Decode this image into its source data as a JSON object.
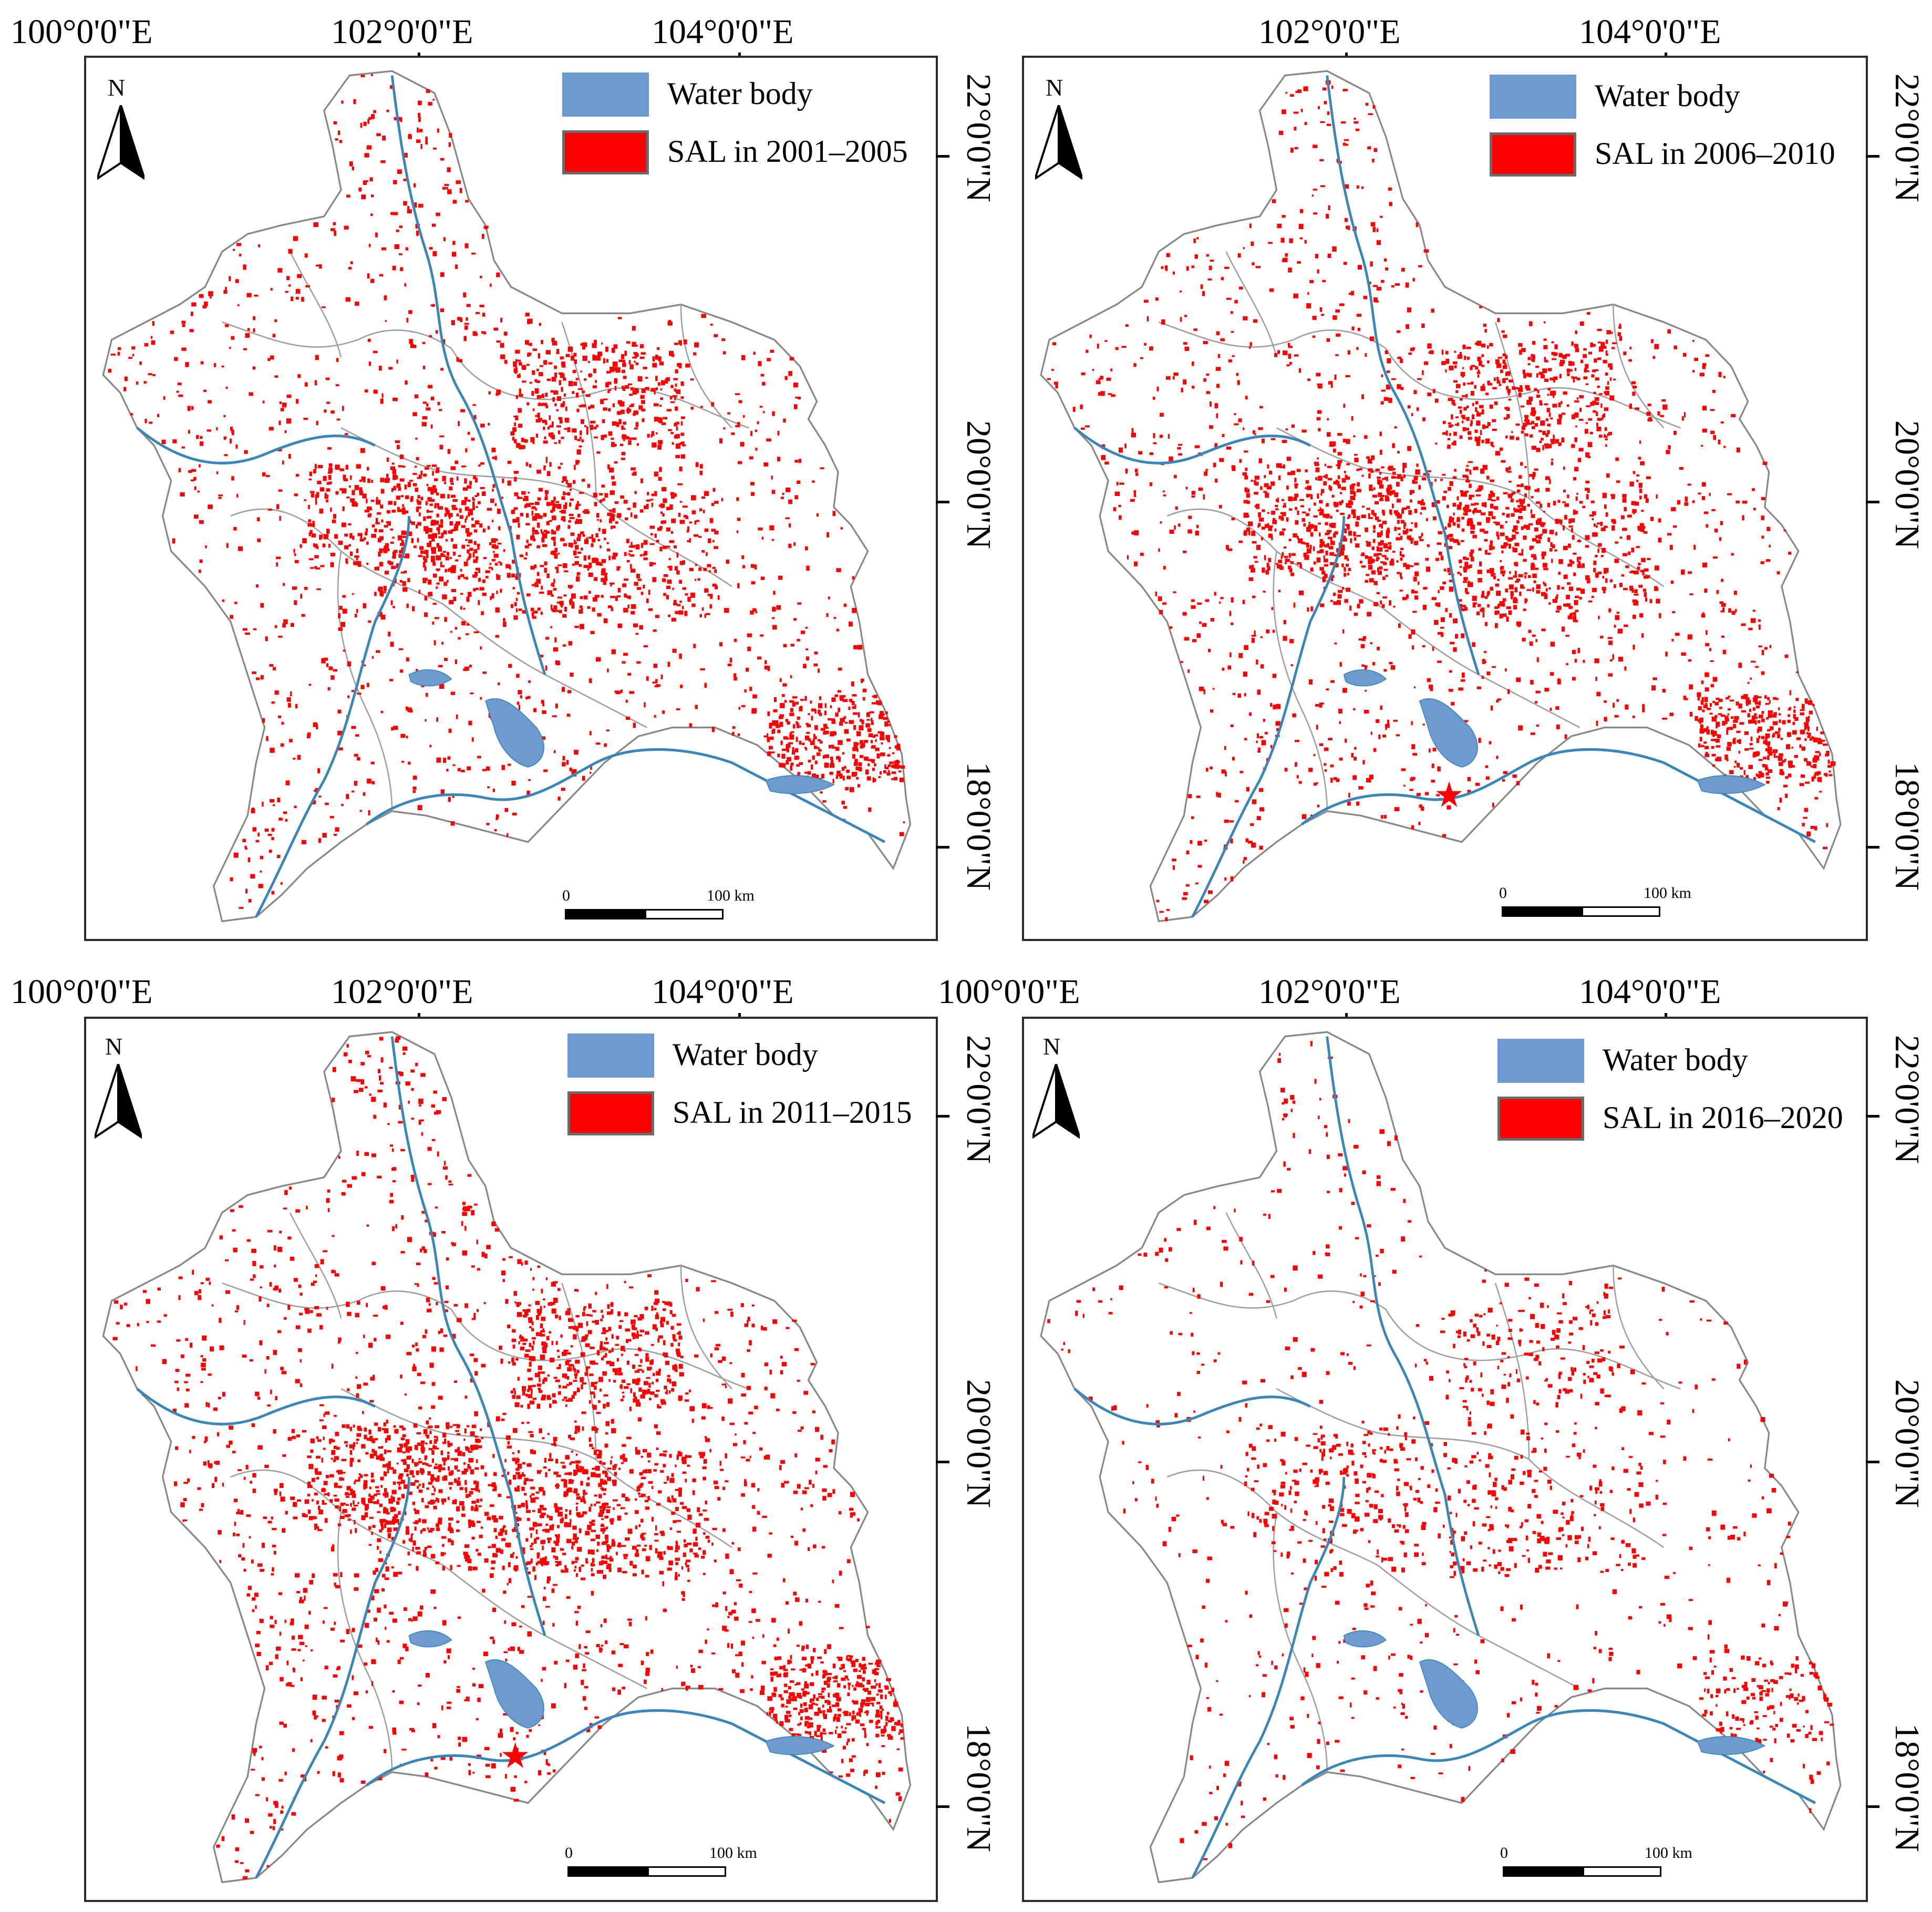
{
  "figure": {
    "colors": {
      "water": "#6d9bd1",
      "sal": "#ff0000",
      "outline": "#888888",
      "river": "#3a86b8",
      "frame": "#2b2b2b"
    }
  },
  "legend": {
    "water_label": "Water body"
  },
  "north_arrow": {
    "letter": "N",
    "icon": "north-arrow-icon"
  },
  "scale_bar": {
    "start": "0",
    "end": "100 km"
  },
  "panels": [
    {
      "id": "p1",
      "period": "2001–2005",
      "sal_label": "SAL in 2001–2005",
      "density": 1.0,
      "lon_labels": [
        "100°0'0\"E",
        "102°0'0\"E",
        "104°0'0\"E"
      ],
      "lat_labels": [
        "22°0'0\"N",
        "20°0'0\"N",
        "18°0'0\"N"
      ],
      "star": false
    },
    {
      "id": "p2",
      "period": "2006–2010",
      "sal_label": "SAL in 2006–2010",
      "density": 1.05,
      "lon_labels": [
        "102°0'0\"E",
        "104°0'0\"E"
      ],
      "lat_labels": [
        "22°0'0\"N",
        "20°0'0\"N",
        "18°0'0\"N"
      ],
      "star": true
    },
    {
      "id": "p3",
      "period": "2011–2015",
      "sal_label": "SAL in 2011–2015",
      "density": 1.1,
      "lon_labels": [
        "100°0'0\"E",
        "102°0'0\"E",
        "104°0'0\"E"
      ],
      "lat_labels": [
        "22°0'0\"N",
        "20°0'0\"N",
        "18°0'0\"N"
      ],
      "star": true
    },
    {
      "id": "p4",
      "period": "2016–2020",
      "sal_label": "SAL in 2016–2020",
      "density": 0.45,
      "lon_labels": [
        "100°0'0\"E",
        "102°0'0\"E",
        "104°0'0\"E"
      ],
      "lat_labels": [
        "22°0'0\"N",
        "20°0'0\"N",
        "18°0'0\"N"
      ],
      "star": false
    }
  ]
}
